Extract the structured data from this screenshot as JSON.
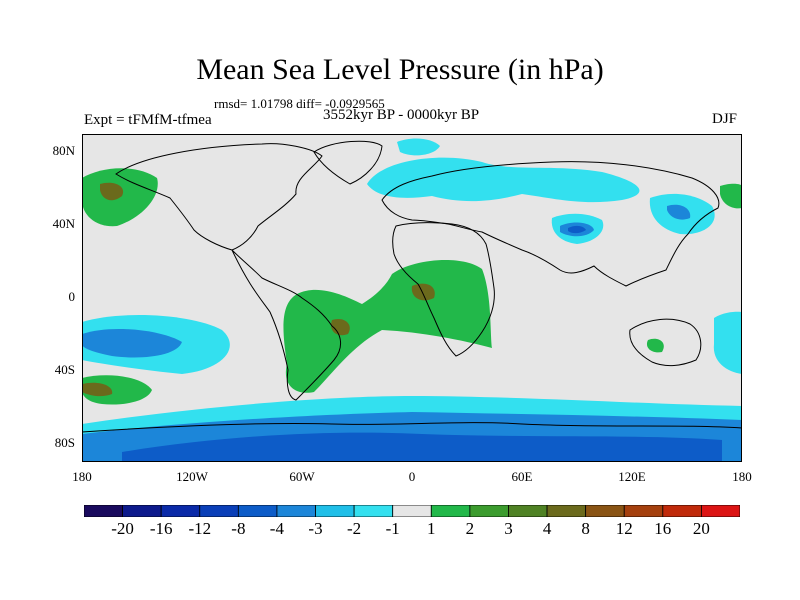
{
  "title": "Mean Sea Level Pressure (in hPa)",
  "stats_line": "rmsd= 1.01798 diff= -0.0929565",
  "period": "3552kyr BP - 0000kyr BP",
  "experiment": "Expt = tFMfM-tfmea",
  "season": "DJF",
  "lat_ticks": [
    "80N",
    "40N",
    "0",
    "40S",
    "80S"
  ],
  "lon_ticks": [
    "180",
    "120W",
    "60W",
    "0",
    "60E",
    "120E",
    "180"
  ],
  "colorbar": {
    "colors": [
      "#1a0a5e",
      "#0d1a8c",
      "#0a2aa8",
      "#0a3fb8",
      "#0d5cc8",
      "#1c86d9",
      "#20bfe8",
      "#33e0ef",
      "#e6e6e6",
      "#22b84a",
      "#3c9c2e",
      "#4f8224",
      "#6b6a1c",
      "#8a5414",
      "#a5400e",
      "#c02a0a",
      "#dc1414"
    ],
    "labels": [
      "-20",
      "-16",
      "-12",
      "-8",
      "-4",
      "-3",
      "-2",
      "-1",
      "1",
      "2",
      "3",
      "4",
      "8",
      "12",
      "16",
      "20"
    ]
  },
  "map_colors": {
    "neutral": "#e6e6e6",
    "light_blue": "#33e0ef",
    "mid_blue": "#1c86d9",
    "dark_blue": "#0d5cc8",
    "green": "#22b84a",
    "olive": "#6b6a1c"
  }
}
